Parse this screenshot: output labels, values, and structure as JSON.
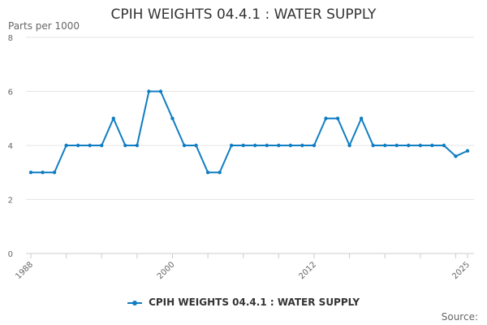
{
  "chart_data": {
    "type": "line",
    "title": "CPIH WEIGHTS 04.4.1 : WATER SUPPLY",
    "ylabel": "Parts per 1000",
    "xlabel": "",
    "x": [
      1988,
      1989,
      1990,
      1991,
      1992,
      1993,
      1994,
      1995,
      1996,
      1997,
      1998,
      1999,
      2000,
      2001,
      2002,
      2003,
      2004,
      2005,
      2006,
      2007,
      2008,
      2009,
      2010,
      2011,
      2012,
      2013,
      2014,
      2015,
      2016,
      2017,
      2018,
      2019,
      2020,
      2021,
      2022,
      2023,
      2024,
      2025
    ],
    "series": [
      {
        "name": "CPIH WEIGHTS 04.4.1 : WATER SUPPLY",
        "color": "#0f7dc2",
        "values": [
          3,
          3,
          3,
          4,
          4,
          4,
          4,
          5,
          4,
          4,
          6,
          6,
          5,
          4,
          4,
          3,
          3,
          4,
          4,
          4,
          4,
          4,
          4,
          4,
          4,
          5,
          5,
          4,
          5,
          4,
          4,
          4,
          4,
          4,
          4,
          4,
          3.6,
          3.8
        ]
      }
    ],
    "ylim": [
      0,
      8
    ],
    "yticks": [
      "0",
      "2",
      "4",
      "6",
      "8"
    ],
    "xticks": [
      "1988",
      "2000",
      "2012",
      "2025"
    ],
    "grid": true,
    "legend": "bottom",
    "source_label": "Source:"
  }
}
